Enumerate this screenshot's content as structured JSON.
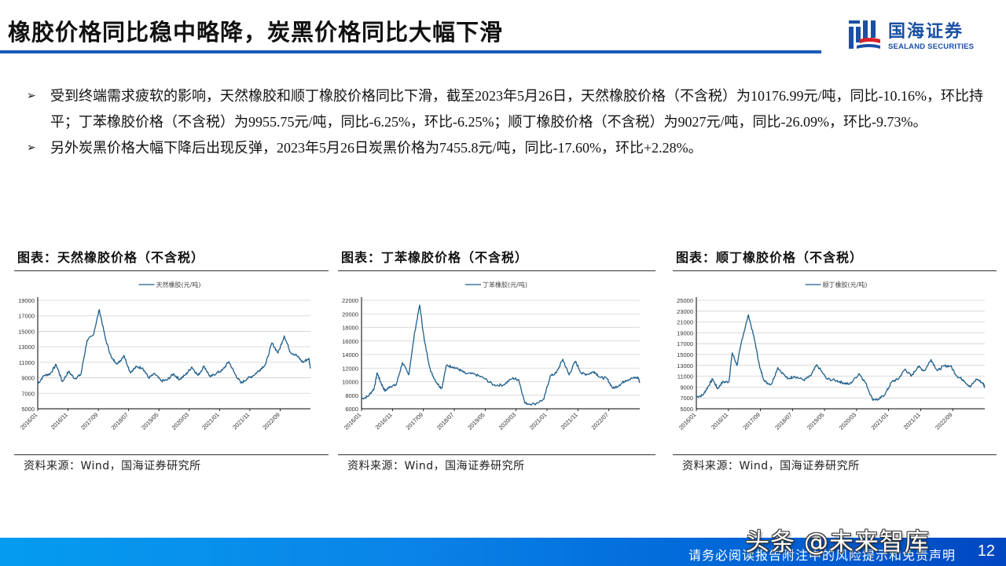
{
  "header": {
    "title": "橡胶价格同比稳中略降，炭黑价格同比大幅下滑",
    "logo": {
      "cn": "国海证券",
      "en": "SEALAND SECURITIES",
      "icon": "sealand-logo-icon"
    },
    "accent_color": "#1a5bb8"
  },
  "bullets": [
    {
      "icon": "arrow-bullet-icon",
      "text": "受到终端需求疲软的影响，天然橡胶和顺丁橡胶价格同比下滑，截至2023年5月26日，天然橡胶价格（不含税）为10176.99元/吨，同比-10.16%，环比持平；丁苯橡胶价格（不含税）为9955.75元/吨，同比-6.25%，环比-6.25%；顺丁橡胶价格（不含税）为9027元/吨，同比-26.09%，环比-9.73%。"
    },
    {
      "icon": "arrow-bullet-icon",
      "text": "另外炭黑价格大幅下降后出现反弹，2023年5月26日炭黑价格为7455.8元/吨，同比-17.60%，环比+2.28%。"
    }
  ],
  "chart_data": [
    {
      "type": "line",
      "title": "图表：天然橡胶价格（不含税）",
      "legend": [
        "天然橡胶(元/吨)"
      ],
      "legend_position": "top",
      "grid": true,
      "line_color": "#1f5f8b",
      "xlabel": "",
      "ylabel": "",
      "ylim": [
        5000,
        19000
      ],
      "yticks": [
        5000,
        7000,
        9000,
        11000,
        13000,
        15000,
        17000,
        19000
      ],
      "xticks": [
        "2016/01",
        "2016/11",
        "2017/09",
        "2018/07",
        "2019/05",
        "2020/03",
        "2021/01",
        "2021/11",
        "2022/09"
      ],
      "x_range": [
        "2016/01",
        "2023/05"
      ],
      "series": [
        {
          "name": "天然橡胶(元/吨)",
          "x": [
            0,
            0.2,
            0.4,
            0.6,
            0.8,
            1.0,
            1.2,
            1.4,
            1.6,
            1.8,
            2.0,
            2.2,
            2.4,
            2.6,
            2.8,
            3.0,
            3.2,
            3.4,
            3.6,
            3.8,
            4.0,
            4.2,
            4.4,
            4.6,
            4.8,
            5.0,
            5.2,
            5.4,
            5.6,
            5.8,
            6.0,
            6.2,
            6.4,
            6.6,
            6.8,
            7.0,
            7.2,
            7.4,
            7.6,
            7.8,
            8.0,
            8.2,
            8.4,
            8.6,
            8.8,
            8.85
          ],
          "values": [
            8200,
            9300,
            9500,
            10700,
            8500,
            9800,
            8900,
            9400,
            13800,
            14500,
            17800,
            14000,
            11500,
            10800,
            11900,
            9700,
            10400,
            10300,
            9000,
            9500,
            8600,
            8700,
            9500,
            8800,
            9400,
            10400,
            9300,
            10500,
            9100,
            9600,
            10000,
            11100,
            9500,
            8300,
            8900,
            9300,
            10000,
            10800,
            13500,
            12200,
            14400,
            12300,
            11900,
            11000,
            11500,
            10200
          ]
        }
      ],
      "source": "资料来源：Wind，国海证券研究所"
    },
    {
      "type": "line",
      "title": "图表：丁苯橡胶价格（不含税）",
      "legend": [
        "丁苯橡胶(元/吨)"
      ],
      "legend_position": "top",
      "grid": true,
      "line_color": "#1f5f8b",
      "xlabel": "",
      "ylabel": "",
      "ylim": [
        6000,
        22000
      ],
      "yticks": [
        6000,
        8000,
        10000,
        12000,
        14000,
        16000,
        18000,
        20000,
        22000
      ],
      "xticks": [
        "2016/01",
        "2016/11",
        "2017/09",
        "2018/07",
        "2019/05",
        "2020/03",
        "2021/01",
        "2021/11",
        "2022/07"
      ],
      "x_range": [
        "2016/01",
        "2023/05"
      ],
      "series": [
        {
          "name": "丁苯橡胶(元/吨)",
          "x": [
            0,
            0.2,
            0.4,
            0.5,
            0.6,
            0.75,
            0.9,
            1.1,
            1.3,
            1.5,
            1.7,
            1.85,
            2.0,
            2.2,
            2.4,
            2.55,
            2.7,
            2.9,
            3.1,
            3.3,
            3.6,
            3.9,
            4.2,
            4.5,
            4.8,
            5.0,
            5.2,
            5.5,
            5.8,
            6.0,
            6.2,
            6.4,
            6.6,
            6.8,
            7.0,
            7.2,
            7.4,
            7.6,
            7.8,
            8.0,
            8.2,
            8.4,
            8.6,
            8.8,
            8.85
          ],
          "values": [
            7500,
            7800,
            9000,
            11300,
            10000,
            8600,
            9300,
            9500,
            12800,
            11000,
            17500,
            21300,
            16000,
            11500,
            9800,
            9000,
            12400,
            12200,
            11800,
            11200,
            11100,
            10500,
            9500,
            9500,
            10500,
            10300,
            6800,
            6700,
            7400,
            10800,
            11300,
            13300,
            11000,
            13000,
            11200,
            11100,
            11500,
            10600,
            10500,
            9000,
            9500,
            10200,
            10500,
            10600,
            9900
          ]
        }
      ],
      "source": "资料来源：Wind，国海证券研究所"
    },
    {
      "type": "line",
      "title": "图表：顺丁橡胶价格（不含税）",
      "legend": [
        "顺丁橡胶(元/吨)"
      ],
      "legend_position": "top",
      "grid": true,
      "line_color": "#1f5f8b",
      "xlabel": "",
      "ylabel": "",
      "ylim": [
        5000,
        25000
      ],
      "yticks": [
        5000,
        7000,
        9000,
        11000,
        13000,
        15000,
        17000,
        19000,
        21000,
        23000,
        25000
      ],
      "xticks": [
        "2016/01",
        "2016/11",
        "2017/09",
        "2018/07",
        "2019/05",
        "2020/03",
        "2021/01",
        "2021/11",
        "2022/09"
      ],
      "x_range": [
        "2016/01",
        "2023/05"
      ],
      "series": [
        {
          "name": "顺丁橡胶(元/吨)",
          "x": [
            0,
            0.2,
            0.35,
            0.5,
            0.65,
            0.8,
            1.0,
            1.1,
            1.25,
            1.4,
            1.6,
            1.8,
            1.95,
            2.1,
            2.3,
            2.5,
            2.8,
            3.0,
            3.3,
            3.5,
            3.7,
            4.0,
            4.3,
            4.5,
            4.7,
            5.0,
            5.2,
            5.4,
            5.6,
            5.8,
            6.0,
            6.2,
            6.4,
            6.6,
            6.8,
            7.0,
            7.2,
            7.4,
            7.6,
            7.8,
            8.0,
            8.2,
            8.4,
            8.6,
            8.8,
            8.85
          ],
          "values": [
            7200,
            7500,
            9000,
            10500,
            8700,
            9900,
            10000,
            15300,
            13000,
            17800,
            22300,
            17300,
            12500,
            10000,
            9500,
            12600,
            10500,
            11000,
            10300,
            11000,
            13100,
            10500,
            10200,
            9800,
            9500,
            11500,
            9700,
            6800,
            6700,
            7800,
            10000,
            10500,
            12300,
            11000,
            12800,
            12000,
            14100,
            12000,
            12900,
            12900,
            11000,
            10300,
            9000,
            10500,
            9700,
            9000
          ]
        }
      ],
      "source": "资料来源：Wind，国海证券研究所"
    }
  ],
  "footer": {
    "disclaimer": "请务必阅读报告附注中的风险提示和免责声明",
    "page_number": "12",
    "watermark": "头条 @未来智库"
  }
}
